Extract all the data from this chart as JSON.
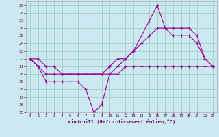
{
  "xlabel": "Windchill (Refroidissement éolien,°C)",
  "bg_color": "#cce8f0",
  "line_color": "#990099",
  "grid_color": "#99ccbb",
  "ylim": [
    15,
    29.5
  ],
  "xlim": [
    -0.5,
    23.5
  ],
  "yticks": [
    15,
    16,
    17,
    18,
    19,
    20,
    21,
    22,
    23,
    24,
    25,
    26,
    27,
    28,
    29
  ],
  "xticks": [
    0,
    1,
    2,
    3,
    4,
    5,
    6,
    7,
    8,
    9,
    10,
    11,
    12,
    13,
    14,
    15,
    16,
    17,
    18,
    19,
    20,
    21,
    22,
    23
  ],
  "line1_x": [
    0,
    1,
    2,
    3,
    4,
    5,
    6,
    7,
    8,
    9,
    10,
    11,
    12,
    13,
    14,
    15,
    16,
    17,
    18,
    19,
    20,
    21,
    22,
    23
  ],
  "line1_y": [
    22,
    21,
    19,
    19,
    19,
    19,
    19,
    18,
    15,
    16,
    20,
    21,
    22,
    23,
    25,
    27,
    29,
    26,
    25,
    25,
    25,
    24,
    22,
    21
  ],
  "line2_x": [
    0,
    1,
    2,
    3,
    4,
    5,
    6,
    7,
    8,
    9,
    10,
    11,
    12,
    13,
    14,
    15,
    16,
    17,
    18,
    19,
    20,
    21,
    22,
    23
  ],
  "line2_y": [
    22,
    21,
    20,
    20,
    20,
    20,
    20,
    20,
    20,
    20,
    21,
    22,
    22,
    23,
    24,
    25,
    26,
    26,
    26,
    26,
    26,
    25,
    22,
    21
  ],
  "line3_x": [
    0,
    1,
    2,
    3,
    4,
    5,
    6,
    7,
    8,
    9,
    10,
    11,
    12,
    13,
    14,
    15,
    16,
    17,
    18,
    19,
    20,
    21,
    22,
    23
  ],
  "line3_y": [
    22,
    22,
    21,
    21,
    20,
    20,
    20,
    20,
    20,
    20,
    20,
    20,
    21,
    21,
    21,
    21,
    21,
    21,
    21,
    21,
    21,
    21,
    21,
    21
  ]
}
